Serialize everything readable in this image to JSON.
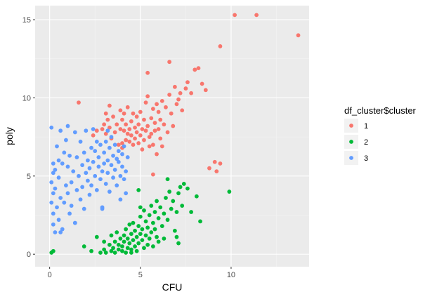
{
  "chart_data": {
    "type": "scatter",
    "title": "",
    "xlabel": "CFU",
    "ylabel": "poly",
    "xlim": [
      -0.8,
      14.3
    ],
    "ylim": [
      -0.8,
      15.9
    ],
    "x_ticks": [
      0,
      5,
      10
    ],
    "x_tick_labels": [
      "0",
      "5",
      "10"
    ],
    "y_ticks": [
      0,
      5,
      10,
      15
    ],
    "y_tick_labels": [
      "0",
      "5",
      "10",
      "15"
    ],
    "grid": true,
    "background": "#ebebeb",
    "legend": {
      "title": "df_cluster$cluster",
      "position": "right",
      "entries": [
        {
          "label": "1",
          "color": "#F8766D"
        },
        {
          "label": "2",
          "color": "#00BA38"
        },
        {
          "label": "3",
          "color": "#619CFF"
        }
      ]
    },
    "series": [
      {
        "name": "1",
        "color": "#F8766D",
        "points": [
          [
            1.6,
            9.7
          ],
          [
            2.4,
            7.6
          ],
          [
            2.6,
            7.9
          ],
          [
            2.9,
            8.0
          ],
          [
            3.0,
            8.3
          ],
          [
            3.1,
            7.7
          ],
          [
            3.2,
            8.6
          ],
          [
            3.3,
            8.1
          ],
          [
            3.3,
            9.5
          ],
          [
            3.4,
            7.4
          ],
          [
            3.5,
            8.8
          ],
          [
            3.6,
            7.8
          ],
          [
            3.7,
            8.3
          ],
          [
            3.8,
            7.0
          ],
          [
            3.9,
            9.2
          ],
          [
            3.9,
            8.0
          ],
          [
            4.0,
            7.1
          ],
          [
            4.0,
            8.6
          ],
          [
            4.1,
            7.9
          ],
          [
            4.1,
            9.0
          ],
          [
            4.2,
            7.3
          ],
          [
            4.2,
            8.3
          ],
          [
            4.3,
            7.7
          ],
          [
            4.3,
            9.4
          ],
          [
            4.4,
            8.0
          ],
          [
            4.4,
            7.2
          ],
          [
            4.5,
            8.5
          ],
          [
            4.5,
            7.6
          ],
          [
            4.6,
            7.0
          ],
          [
            4.6,
            9.0
          ],
          [
            4.7,
            8.1
          ],
          [
            4.7,
            7.4
          ],
          [
            4.8,
            8.8
          ],
          [
            4.8,
            7.8
          ],
          [
            4.9,
            7.1
          ],
          [
            4.9,
            8.3
          ],
          [
            5.0,
            9.1
          ],
          [
            5.0,
            7.6
          ],
          [
            5.1,
            8.0
          ],
          [
            5.1,
            6.7
          ],
          [
            5.2,
            8.6
          ],
          [
            5.2,
            7.3
          ],
          [
            5.3,
            9.7
          ],
          [
            5.3,
            7.9
          ],
          [
            5.4,
            8.2
          ],
          [
            5.4,
            10.1
          ],
          [
            5.5,
            7.5
          ],
          [
            5.5,
            6.9
          ],
          [
            5.6,
            8.7
          ],
          [
            5.6,
            7.7
          ],
          [
            5.7,
            9.3
          ],
          [
            5.7,
            7.0
          ],
          [
            5.8,
            8.4
          ],
          [
            5.8,
            7.9
          ],
          [
            5.9,
            9.6
          ],
          [
            5.9,
            6.4
          ],
          [
            6.0,
            8.0
          ],
          [
            6.0,
            9.1
          ],
          [
            6.1,
            8.6
          ],
          [
            6.1,
            7.4
          ],
          [
            6.2,
            9.8
          ],
          [
            6.3,
            8.3
          ],
          [
            6.4,
            9.4
          ],
          [
            6.5,
            7.8
          ],
          [
            6.6,
            10.2
          ],
          [
            6.7,
            9.0
          ],
          [
            6.8,
            8.2
          ],
          [
            6.9,
            10.7
          ],
          [
            7.0,
            9.6
          ],
          [
            7.1,
            9.9
          ],
          [
            7.2,
            10.3
          ],
          [
            7.3,
            9.2
          ],
          [
            7.5,
            10.6
          ],
          [
            7.8,
            10.3
          ],
          [
            8.0,
            11.8
          ],
          [
            8.2,
            11.9
          ],
          [
            8.4,
            10.9
          ],
          [
            8.6,
            10.5
          ],
          [
            8.8,
            5.5
          ],
          [
            9.1,
            5.9
          ],
          [
            9.2,
            5.3
          ],
          [
            9.4,
            5.8
          ],
          [
            9.4,
            13.3
          ],
          [
            10.2,
            15.3
          ],
          [
            11.4,
            15.3
          ],
          [
            13.7,
            14.0
          ],
          [
            5.4,
            11.6
          ],
          [
            6.2,
            6.9
          ],
          [
            7.6,
            11.0
          ],
          [
            4.0,
            6.8
          ],
          [
            3.1,
            9.0
          ],
          [
            6.6,
            12.3
          ],
          [
            5.7,
            5.1
          ]
        ]
      },
      {
        "name": "2",
        "color": "#00BA38",
        "points": [
          [
            0.1,
            0.1
          ],
          [
            0.2,
            0.2
          ],
          [
            1.9,
            0.5
          ],
          [
            2.3,
            0.2
          ],
          [
            2.6,
            1.1
          ],
          [
            2.8,
            0.1
          ],
          [
            3.0,
            0.3
          ],
          [
            3.1,
            0.1
          ],
          [
            3.3,
            0.6
          ],
          [
            3.4,
            0.2
          ],
          [
            3.4,
            1.2
          ],
          [
            3.5,
            0.4
          ],
          [
            3.6,
            0.1
          ],
          [
            3.6,
            0.8
          ],
          [
            3.7,
            1.4
          ],
          [
            3.8,
            0.3
          ],
          [
            3.8,
            0.6
          ],
          [
            3.9,
            1.0
          ],
          [
            4.0,
            0.2
          ],
          [
            4.0,
            0.5
          ],
          [
            4.1,
            1.2
          ],
          [
            4.1,
            0.8
          ],
          [
            4.2,
            0.1
          ],
          [
            4.2,
            1.6
          ],
          [
            4.3,
            0.4
          ],
          [
            4.3,
            1.0
          ],
          [
            4.4,
            0.7
          ],
          [
            4.4,
            1.9
          ],
          [
            4.5,
            0.3
          ],
          [
            4.5,
            1.3
          ],
          [
            4.6,
            0.9
          ],
          [
            4.6,
            2.0
          ],
          [
            4.7,
            0.5
          ],
          [
            4.7,
            1.5
          ],
          [
            4.8,
            1.1
          ],
          [
            4.8,
            0.2
          ],
          [
            4.9,
            1.8
          ],
          [
            4.9,
            0.7
          ],
          [
            5.0,
            1.3
          ],
          [
            5.0,
            2.4
          ],
          [
            5.1,
            0.9
          ],
          [
            5.1,
            1.6
          ],
          [
            5.2,
            2.8
          ],
          [
            5.2,
            0.4
          ],
          [
            5.3,
            1.2
          ],
          [
            5.3,
            2.1
          ],
          [
            5.4,
            1.7
          ],
          [
            5.4,
            0.6
          ],
          [
            5.5,
            2.5
          ],
          [
            5.5,
            1.0
          ],
          [
            5.6,
            3.1
          ],
          [
            5.6,
            1.4
          ],
          [
            5.7,
            2.0
          ],
          [
            5.7,
            0.5
          ],
          [
            5.8,
            2.7
          ],
          [
            5.8,
            1.6
          ],
          [
            5.9,
            3.4
          ],
          [
            5.9,
            1.1
          ],
          [
            6.0,
            2.3
          ],
          [
            6.0,
            0.8
          ],
          [
            6.1,
            3.0
          ],
          [
            6.2,
            1.8
          ],
          [
            6.3,
            2.6
          ],
          [
            6.4,
            3.6
          ],
          [
            6.5,
            2.2
          ],
          [
            6.6,
            4.0
          ],
          [
            6.7,
            2.9
          ],
          [
            6.8,
            3.4
          ],
          [
            6.9,
            1.5
          ],
          [
            7.0,
            2.7
          ],
          [
            7.1,
            3.9
          ],
          [
            7.2,
            4.3
          ],
          [
            7.3,
            3.1
          ],
          [
            7.4,
            4.5
          ],
          [
            7.6,
            4.2
          ],
          [
            7.8,
            2.7
          ],
          [
            8.1,
            3.7
          ],
          [
            8.3,
            2.1
          ],
          [
            4.9,
            4.1
          ],
          [
            6.5,
            4.8
          ],
          [
            5.0,
            3.0
          ],
          [
            7.1,
            0.7
          ],
          [
            9.9,
            4.0
          ],
          [
            3.0,
            0.8
          ],
          [
            4.5,
            0.1
          ],
          [
            6.3,
            1.0
          ],
          [
            7.0,
            1.1
          ]
        ]
      },
      {
        "name": "3",
        "color": "#619CFF",
        "points": [
          [
            0.1,
            8.1
          ],
          [
            0.2,
            5.8
          ],
          [
            0.1,
            4.6
          ],
          [
            0.2,
            3.9
          ],
          [
            0.1,
            3.3
          ],
          [
            0.2,
            2.6
          ],
          [
            0.2,
            1.9
          ],
          [
            0.3,
            1.4
          ],
          [
            0.3,
            4.2
          ],
          [
            0.3,
            5.4
          ],
          [
            0.4,
            6.9
          ],
          [
            0.4,
            3.0
          ],
          [
            0.5,
            2.2
          ],
          [
            0.5,
            4.9
          ],
          [
            0.6,
            7.9
          ],
          [
            0.6,
            3.6
          ],
          [
            0.7,
            5.8
          ],
          [
            0.7,
            1.6
          ],
          [
            0.8,
            3.3
          ],
          [
            0.8,
            6.5
          ],
          [
            0.9,
            4.4
          ],
          [
            0.9,
            7.3
          ],
          [
            1.0,
            3.9
          ],
          [
            1.0,
            5.6
          ],
          [
            1.1,
            2.6
          ],
          [
            1.1,
            6.3
          ],
          [
            1.2,
            4.6
          ],
          [
            1.2,
            3.1
          ],
          [
            1.3,
            5.3
          ],
          [
            1.4,
            7.8
          ],
          [
            1.4,
            2.0
          ],
          [
            1.5,
            4.1
          ],
          [
            1.5,
            6.2
          ],
          [
            1.6,
            5.0
          ],
          [
            1.7,
            7.2
          ],
          [
            1.7,
            3.5
          ],
          [
            1.8,
            5.7
          ],
          [
            1.8,
            4.3
          ],
          [
            1.9,
            6.5
          ],
          [
            1.9,
            2.9
          ],
          [
            2.0,
            5.2
          ],
          [
            2.0,
            7.9
          ],
          [
            2.1,
            4.7
          ],
          [
            2.1,
            6.0
          ],
          [
            2.2,
            3.8
          ],
          [
            2.2,
            5.5
          ],
          [
            2.3,
            6.8
          ],
          [
            2.3,
            4.4
          ],
          [
            2.4,
            5.9
          ],
          [
            2.4,
            8.0
          ],
          [
            2.5,
            5.0
          ],
          [
            2.5,
            6.6
          ],
          [
            2.6,
            4.1
          ],
          [
            2.6,
            7.2
          ],
          [
            2.7,
            5.6
          ],
          [
            2.7,
            6.2
          ],
          [
            2.8,
            4.8
          ],
          [
            2.8,
            7.0
          ],
          [
            2.9,
            5.3
          ],
          [
            2.9,
            3.0
          ],
          [
            3.0,
            6.5
          ],
          [
            3.0,
            5.8
          ],
          [
            3.1,
            7.2
          ],
          [
            3.1,
            4.5
          ],
          [
            3.2,
            6.0
          ],
          [
            3.2,
            5.2
          ],
          [
            3.3,
            6.8
          ],
          [
            3.3,
            4.0
          ],
          [
            3.4,
            5.7
          ],
          [
            3.4,
            7.5
          ],
          [
            3.5,
            6.3
          ],
          [
            3.5,
            4.9
          ],
          [
            3.6,
            5.4
          ],
          [
            3.6,
            7.0
          ],
          [
            3.7,
            6.1
          ],
          [
            3.7,
            4.4
          ],
          [
            3.8,
            5.9
          ],
          [
            3.8,
            6.6
          ],
          [
            3.9,
            5.0
          ],
          [
            3.9,
            3.5
          ],
          [
            4.0,
            6.4
          ],
          [
            4.0,
            5.6
          ],
          [
            4.1,
            4.8
          ],
          [
            4.1,
            6.9
          ],
          [
            4.2,
            5.3
          ],
          [
            4.2,
            3.9
          ],
          [
            4.3,
            6.2
          ],
          [
            0.6,
            1.4
          ],
          [
            1.4,
            2.0
          ],
          [
            2.9,
            2.9
          ],
          [
            1.0,
            8.2
          ],
          [
            0.2,
            5.2
          ],
          [
            0.5,
            6.0
          ],
          [
            3.2,
            7.9
          ]
        ]
      }
    ]
  }
}
